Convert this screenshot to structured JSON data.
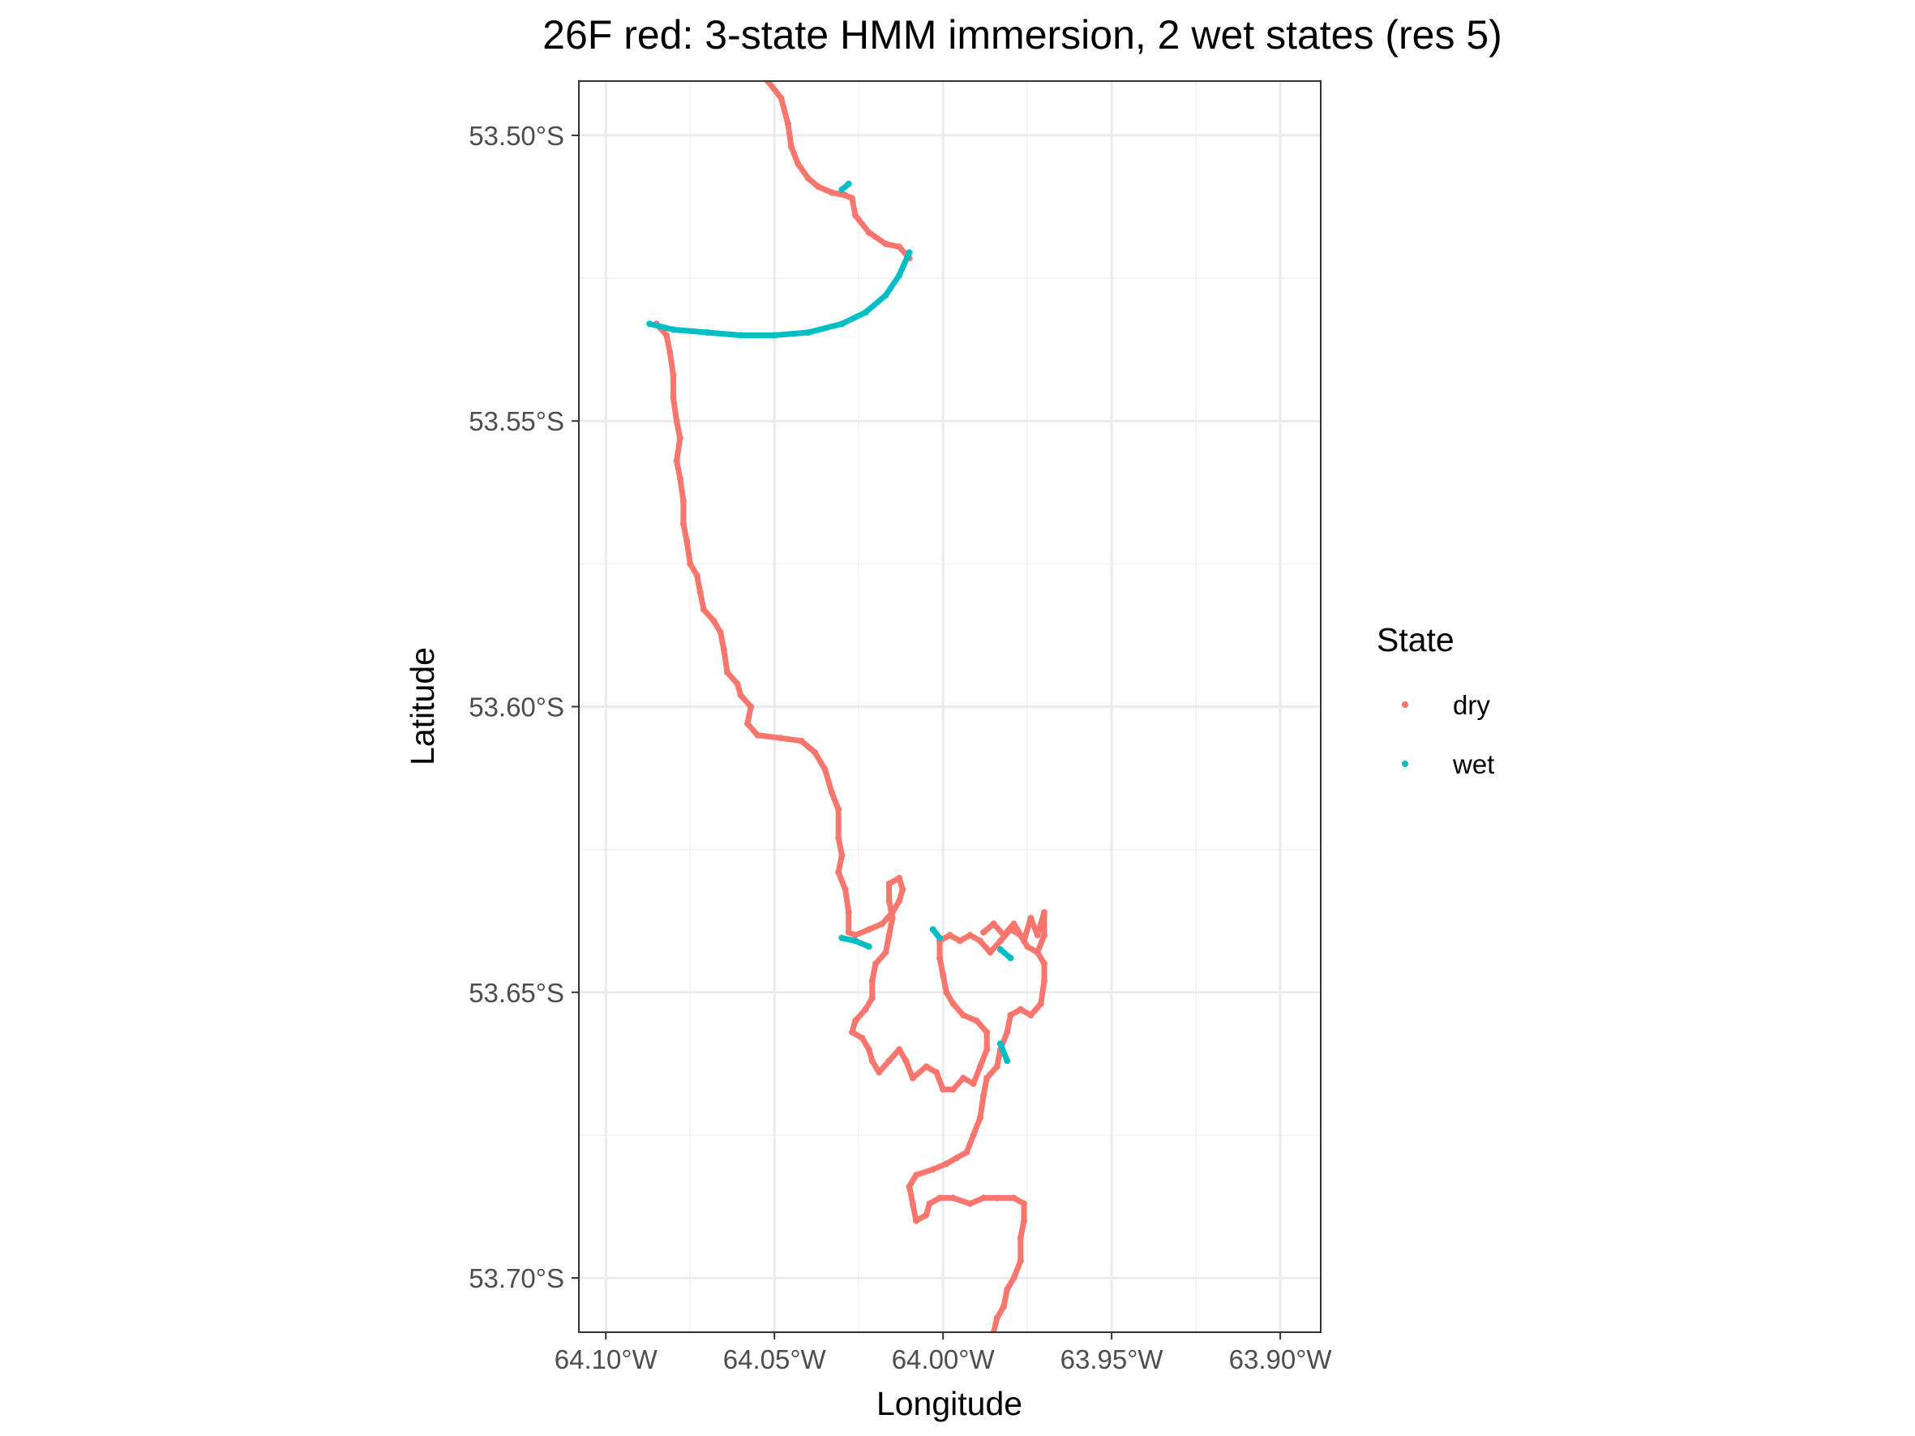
{
  "chart_data": {
    "type": "scatter",
    "title": "26F red: 3-state HMM immersion, 2 wet states (res 5)",
    "xlabel": "Longitude",
    "ylabel": "Latitude",
    "xlim": [
      -64.108,
      -63.888
    ],
    "ylim": [
      -53.7095,
      -53.4905
    ],
    "x_ticks": [
      -64.1,
      -64.05,
      -64.0,
      -63.95,
      -63.9
    ],
    "x_tick_labels": [
      "64.10°W",
      "64.05°W",
      "64.00°W",
      "63.95°W",
      "63.90°W"
    ],
    "y_ticks": [
      -53.5,
      -53.55,
      -53.6,
      -53.65,
      -53.7
    ],
    "y_tick_labels": [
      "53.50°S",
      "53.55°S",
      "53.60°S",
      "53.65°S",
      "53.70°S"
    ],
    "grid": true,
    "legend": {
      "title": "State",
      "position": "right",
      "entries": [
        {
          "label": "dry",
          "color": "#F8766D"
        },
        {
          "label": "wet",
          "color": "#00BFC4"
        }
      ]
    },
    "series": [
      {
        "name": "dry",
        "color": "#F8766D",
        "segments": [
          [
            [
              -64.052,
              -53.4905
            ],
            [
              -64.048,
              -53.4935
            ],
            [
              -64.046,
              -53.498
            ],
            [
              -64.045,
              -53.502
            ],
            [
              -64.043,
              -53.505
            ],
            [
              -64.04,
              -53.5075
            ],
            [
              -64.037,
              -53.509
            ],
            [
              -64.033,
              -53.51
            ],
            [
              -64.029,
              -53.5105
            ],
            [
              -64.027,
              -53.511
            ],
            [
              -64.026,
              -53.514
            ],
            [
              -64.022,
              -53.517
            ],
            [
              -64.017,
              -53.519
            ],
            [
              -64.013,
              -53.5195
            ],
            [
              -64.01,
              -53.5215
            ]
          ],
          [
            [
              -64.085,
              -53.533
            ],
            [
              -64.082,
              -53.535
            ],
            [
              -64.081,
              -53.538
            ],
            [
              -64.08,
              -53.542
            ],
            [
              -64.08,
              -53.546
            ],
            [
              -64.079,
              -53.55
            ],
            [
              -64.078,
              -53.553
            ],
            [
              -64.079,
              -53.557
            ],
            [
              -64.078,
              -53.56
            ],
            [
              -64.077,
              -53.564
            ],
            [
              -64.077,
              -53.568
            ],
            [
              -64.076,
              -53.571
            ],
            [
              -64.075,
              -53.575
            ],
            [
              -64.073,
              -53.577
            ],
            [
              -64.072,
              -53.58
            ],
            [
              -64.071,
              -53.583
            ],
            [
              -64.068,
              -53.585
            ],
            [
              -64.066,
              -53.587
            ],
            [
              -64.065,
              -53.59
            ],
            [
              -64.064,
              -53.594
            ],
            [
              -64.061,
              -53.596
            ],
            [
              -64.06,
              -53.598
            ],
            [
              -64.057,
              -53.6
            ],
            [
              -64.058,
              -53.603
            ],
            [
              -64.055,
              -53.605
            ],
            [
              -64.048,
              -53.6055
            ],
            [
              -64.042,
              -53.606
            ],
            [
              -64.038,
              -53.608
            ],
            [
              -64.035,
              -53.611
            ],
            [
              -64.033,
              -53.615
            ],
            [
              -64.031,
              -53.618
            ],
            [
              -64.031,
              -53.623
            ],
            [
              -64.03,
              -53.626
            ],
            [
              -64.031,
              -53.629
            ],
            [
              -64.029,
              -53.632
            ],
            [
              -64.028,
              -53.636
            ],
            [
              -64.028,
              -53.6395
            ],
            [
              -64.026,
              -53.64
            ],
            [
              -64.022,
              -53.639
            ],
            [
              -64.018,
              -53.638
            ],
            [
              -64.015,
              -53.636
            ],
            [
              -64.013,
              -53.634
            ],
            [
              -64.012,
              -53.632
            ],
            [
              -64.013,
              -53.63
            ],
            [
              -64.016,
              -53.631
            ],
            [
              -64.016,
              -53.634
            ],
            [
              -64.015,
              -53.637
            ],
            [
              -64.016,
              -53.64
            ],
            [
              -64.017,
              -53.643
            ],
            [
              -64.02,
              -53.645
            ],
            [
              -64.021,
              -53.648
            ],
            [
              -64.021,
              -53.651
            ],
            [
              -64.023,
              -53.653
            ],
            [
              -64.026,
              -53.655
            ],
            [
              -64.027,
              -53.657
            ],
            [
              -64.024,
              -53.658
            ],
            [
              -64.022,
              -53.66
            ],
            [
              -64.021,
              -53.662
            ],
            [
              -64.019,
              -53.664
            ],
            [
              -64.016,
              -53.662
            ],
            [
              -64.013,
              -53.66
            ],
            [
              -64.011,
              -53.662
            ],
            [
              -64.009,
              -53.665
            ],
            [
              -64.005,
              -53.663
            ],
            [
              -64.002,
              -53.664
            ],
            [
              -64.0,
              -53.667
            ],
            [
              -63.997,
              -53.667
            ],
            [
              -63.994,
              -53.665
            ],
            [
              -63.991,
              -53.666
            ],
            [
              -63.989,
              -53.663
            ],
            [
              -63.987,
              -53.66
            ],
            [
              -63.987,
              -53.657
            ],
            [
              -63.99,
              -53.655
            ],
            [
              -63.994,
              -53.654
            ],
            [
              -63.997,
              -53.652
            ],
            [
              -63.999,
              -53.65
            ],
            [
              -64.0,
              -53.647
            ],
            [
              -64.001,
              -53.644
            ],
            [
              -64.001,
              -53.641
            ],
            [
              -63.998,
              -53.64
            ],
            [
              -63.995,
              -53.641
            ],
            [
              -63.992,
              -53.64
            ],
            [
              -63.989,
              -53.641
            ],
            [
              -63.986,
              -53.643
            ],
            [
              -63.983,
              -53.641
            ],
            [
              -63.98,
              -53.639
            ],
            [
              -63.977,
              -53.64
            ],
            [
              -63.975,
              -53.642
            ],
            [
              -63.972,
              -53.643
            ],
            [
              -63.97,
              -53.645
            ],
            [
              -63.97,
              -53.648
            ],
            [
              -63.971,
              -53.652
            ],
            [
              -63.974,
              -53.654
            ],
            [
              -63.977,
              -53.653
            ],
            [
              -63.98,
              -53.654
            ],
            [
              -63.981,
              -53.657
            ],
            [
              -63.983,
              -53.66
            ],
            [
              -63.984,
              -53.663
            ],
            [
              -63.987,
              -53.665
            ],
            [
              -63.988,
              -53.668
            ],
            [
              -63.989,
              -53.672
            ],
            [
              -63.991,
              -53.675
            ],
            [
              -63.993,
              -53.678
            ],
            [
              -63.996,
              -53.679
            ],
            [
              -63.999,
              -53.68
            ],
            [
              -64.003,
              -53.681
            ],
            [
              -64.008,
              -53.682
            ],
            [
              -64.01,
              -53.684
            ],
            [
              -64.009,
              -53.687
            ],
            [
              -64.008,
              -53.69
            ],
            [
              -64.005,
              -53.689
            ],
            [
              -64.004,
              -53.687
            ],
            [
              -64.001,
              -53.686
            ],
            [
              -63.997,
              -53.686
            ],
            [
              -63.992,
              -53.687
            ],
            [
              -63.988,
              -53.686
            ],
            [
              -63.984,
              -53.686
            ],
            [
              -63.979,
              -53.686
            ],
            [
              -63.976,
              -53.687
            ],
            [
              -63.976,
              -53.69
            ],
            [
              -63.977,
              -53.693
            ],
            [
              -63.977,
              -53.697
            ],
            [
              -63.979,
              -53.7
            ],
            [
              -63.981,
              -53.702
            ],
            [
              -63.982,
              -53.705
            ],
            [
              -63.984,
              -53.707
            ],
            [
              -63.985,
              -53.7095
            ]
          ],
          [
            [
              -63.988,
              -53.6395
            ],
            [
              -63.985,
              -53.638
            ],
            [
              -63.982,
              -53.64
            ],
            [
              -63.979,
              -53.638
            ],
            [
              -63.976,
              -53.641
            ],
            [
              -63.974,
              -53.637
            ],
            [
              -63.972,
              -53.64
            ],
            [
              -63.97,
              -53.636
            ],
            [
              -63.97,
              -53.64
            ],
            [
              -63.972,
              -53.643
            ]
          ]
        ]
      },
      {
        "name": "wet",
        "color": "#00BFC4",
        "segments": [
          [
            [
              -64.03,
              -53.5095
            ],
            [
              -64.028,
              -53.5085
            ]
          ],
          [
            [
              -64.01,
              -53.5205
            ],
            [
              -64.013,
              -53.5245
            ],
            [
              -64.017,
              -53.528
            ],
            [
              -64.023,
              -53.531
            ],
            [
              -64.03,
              -53.533
            ],
            [
              -64.04,
              -53.5345
            ],
            [
              -64.05,
              -53.535
            ],
            [
              -64.06,
              -53.535
            ],
            [
              -64.07,
              -53.5345
            ],
            [
              -64.08,
              -53.534
            ],
            [
              -64.087,
              -53.533
            ]
          ],
          [
            [
              -64.03,
              -53.6405
            ],
            [
              -64.026,
              -53.641
            ],
            [
              -64.022,
              -53.642
            ]
          ],
          [
            [
              -64.003,
              -53.639
            ],
            [
              -64.001,
              -53.6405
            ]
          ],
          [
            [
              -63.983,
              -53.6425
            ],
            [
              -63.98,
              -53.644
            ]
          ],
          [
            [
              -63.983,
              -53.659
            ],
            [
              -63.981,
              -53.662
            ]
          ]
        ]
      }
    ]
  }
}
